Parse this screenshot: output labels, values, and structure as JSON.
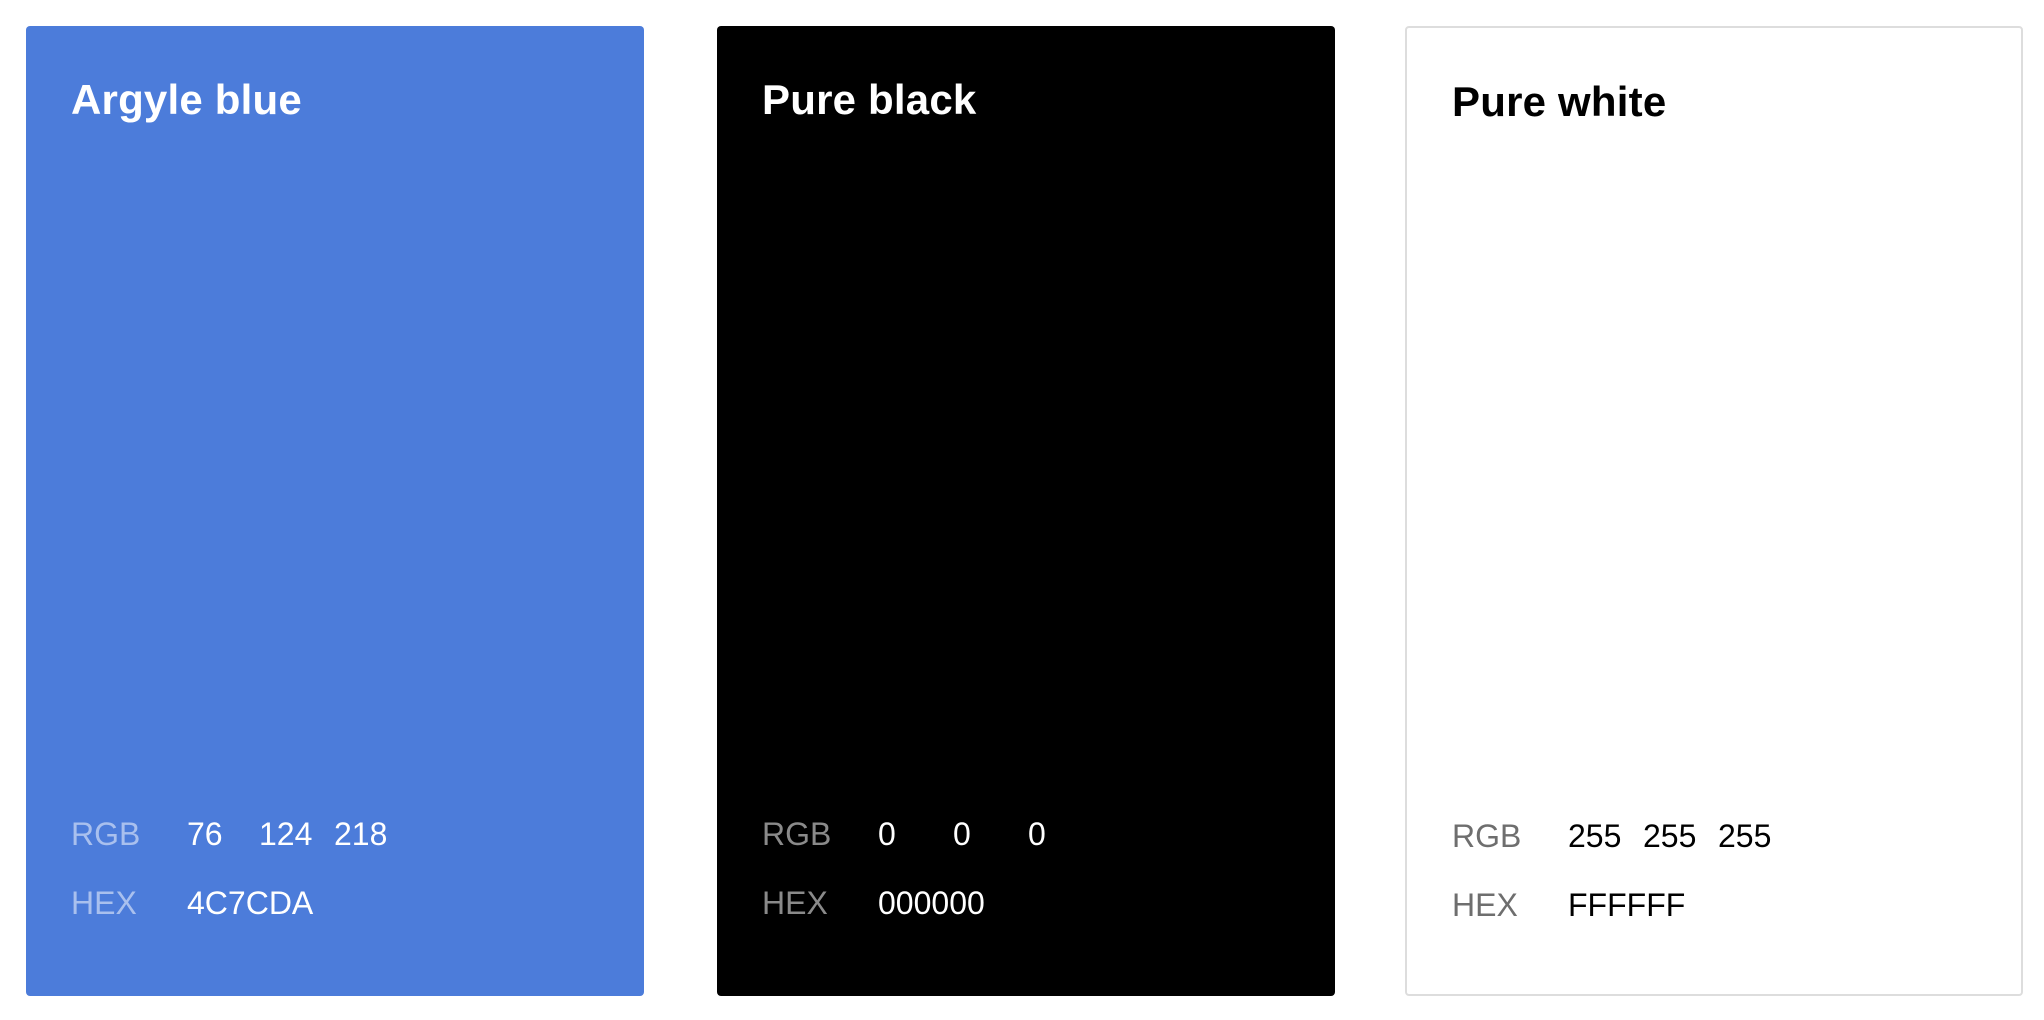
{
  "swatches": [
    {
      "name": "Argyle blue",
      "color": "#4C7CDA",
      "rgb_label": "RGB",
      "rgb": [
        "76",
        "124",
        "218"
      ],
      "hex_label": "HEX",
      "hex": "4C7CDA"
    },
    {
      "name": "Pure black",
      "color": "#000000",
      "rgb_label": "RGB",
      "rgb": [
        "0",
        "0",
        "0"
      ],
      "hex_label": "HEX",
      "hex": "000000"
    },
    {
      "name": "Pure white",
      "color": "#FFFFFF",
      "rgb_label": "RGB",
      "rgb": [
        "255",
        "255",
        "255"
      ],
      "hex_label": "HEX",
      "hex": "FFFFFF"
    }
  ]
}
